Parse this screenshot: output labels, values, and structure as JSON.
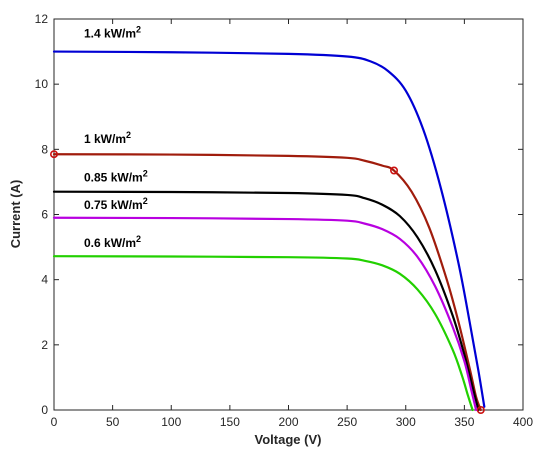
{
  "chart_data": {
    "type": "line",
    "xlabel": "Voltage (V)",
    "ylabel": "Current (A)",
    "xlim": [
      0,
      400
    ],
    "ylim": [
      0,
      12
    ],
    "xticks": [
      0,
      50,
      100,
      150,
      200,
      250,
      300,
      350,
      400
    ],
    "yticks": [
      0,
      2,
      4,
      6,
      8,
      10,
      12
    ],
    "grid": false,
    "series": [
      {
        "name": "1.4 kW/m2",
        "label_main": "1.4 kW/m",
        "label_sup": "2",
        "color": "#0000d4",
        "x": [
          0,
          100,
          200,
          250,
          270,
          285,
          300,
          315,
          330,
          345,
          355,
          362,
          367
        ],
        "y": [
          11.0,
          10.98,
          10.93,
          10.85,
          10.7,
          10.4,
          9.8,
          8.6,
          6.8,
          4.5,
          2.6,
          1.2,
          0.1
        ]
      },
      {
        "name": "1 kW/m2",
        "label_main": "1 kW/m",
        "label_sup": "2",
        "color": "#a01c0c",
        "x": [
          0,
          100,
          200,
          250,
          265,
          280,
          290,
          305,
          320,
          335,
          345,
          355,
          360,
          364
        ],
        "y": [
          7.85,
          7.84,
          7.8,
          7.74,
          7.65,
          7.5,
          7.35,
          6.7,
          5.6,
          4.0,
          2.7,
          1.2,
          0.4,
          0.0
        ]
      },
      {
        "name": "0.85 kW/m2",
        "label_main": "0.85 kW/m",
        "label_sup": "2",
        "color": "#000000",
        "x": [
          0,
          100,
          200,
          250,
          265,
          280,
          295,
          310,
          325,
          340,
          350,
          357,
          362
        ],
        "y": [
          6.7,
          6.69,
          6.66,
          6.6,
          6.5,
          6.3,
          5.95,
          5.3,
          4.3,
          2.9,
          1.7,
          0.7,
          0.0
        ]
      },
      {
        "name": "0.75 kW/m2",
        "label_main": "0.75 kW/m",
        "label_sup": "2",
        "color": "#b800e0",
        "x": [
          0,
          100,
          200,
          250,
          265,
          280,
          295,
          310,
          325,
          340,
          350,
          356,
          360
        ],
        "y": [
          5.9,
          5.89,
          5.86,
          5.81,
          5.72,
          5.55,
          5.25,
          4.7,
          3.8,
          2.55,
          1.5,
          0.6,
          0.0
        ]
      },
      {
        "name": "0.6 kW/m2",
        "label_main": "0.6 kW/m",
        "label_sup": "2",
        "color": "#22d000",
        "x": [
          0,
          100,
          200,
          250,
          265,
          280,
          295,
          310,
          325,
          340,
          348,
          353,
          357
        ],
        "y": [
          4.72,
          4.71,
          4.69,
          4.65,
          4.58,
          4.44,
          4.18,
          3.7,
          2.95,
          1.85,
          1.05,
          0.45,
          0.0
        ]
      }
    ],
    "markers": [
      {
        "x": 0,
        "y": 7.85,
        "color": "#cc1111"
      },
      {
        "x": 290,
        "y": 7.35,
        "color": "#cc1111"
      },
      {
        "x": 364,
        "y": 0.0,
        "color": "#cc1111"
      }
    ]
  }
}
